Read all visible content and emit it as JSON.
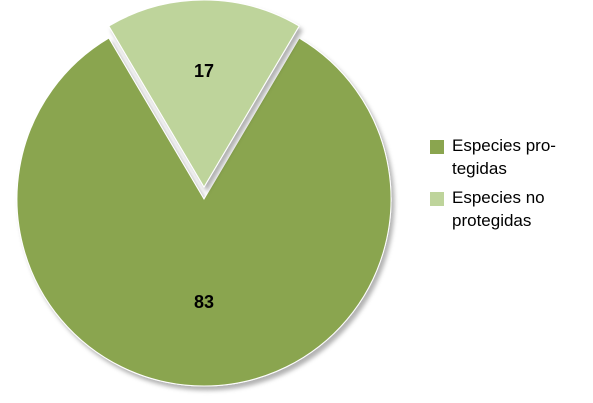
{
  "chart_data": {
    "type": "pie",
    "title": "",
    "slices": [
      {
        "label": "Especies protegidas",
        "legend_text": "Especies pro-\ntegidas",
        "value": 83,
        "display": "83",
        "color": "#8aa54f",
        "exploded": false
      },
      {
        "label": "Especies no protegidas",
        "legend_text": "Especies no\nprotegidas",
        "value": 17,
        "display": "17",
        "color": "#bed49b",
        "exploded": true
      }
    ],
    "legend_position": "right",
    "data_labels": true
  }
}
